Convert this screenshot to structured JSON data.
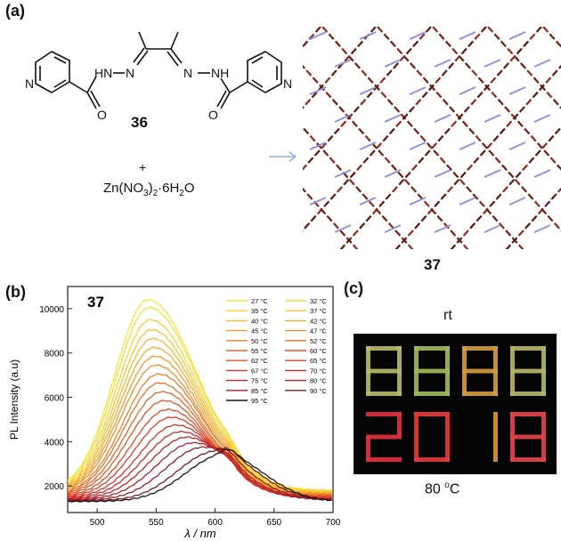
{
  "panel_a": {
    "label": "(a)",
    "ligand_number": "36",
    "plus": "+",
    "salt_main": "Zn(NO",
    "salt_sub1": "3",
    "salt_mid": ")",
    "salt_sub2": "2",
    "salt_dot": "·6H",
    "salt_sub3": "2",
    "salt_end": "O",
    "product_number": "37",
    "ring_N_left": "N",
    "ring_N_right": "N",
    "hydrazide_left": "HN",
    "hydrazide_left2": "N",
    "hydrazide_right": "N",
    "hydrazide_right2": "NH",
    "carbonyl_left": "O",
    "carbonyl_right": "O",
    "arrow_color": "#8fb3dc"
  },
  "panel_b": {
    "label": "(b)",
    "compound": "37"
  },
  "panel_c": {
    "label": "(c)",
    "top_caption": "rt",
    "bottom_caption_value": "80 ",
    "bottom_caption_sup": "o",
    "bottom_caption_unit": "C",
    "digits_top": [
      "8",
      "8",
      "8",
      "8"
    ],
    "digits_bottom": [
      "2",
      "0",
      "1",
      "8"
    ]
  },
  "chart_data": {
    "type": "line",
    "title": "",
    "xlabel": "λ / nm",
    "ylabel": "PL Intensity (a.u)",
    "xlim": [
      475,
      700
    ],
    "ylim": [
      800,
      11000
    ],
    "xticks": [
      500,
      550,
      600,
      650,
      700
    ],
    "yticks": [
      2000,
      4000,
      6000,
      8000,
      10000
    ],
    "legend_position": "top-right",
    "series": [
      {
        "name": "27 °C",
        "color": "#f5e63c",
        "peak": 10400,
        "peak_x": 543
      },
      {
        "name": "32 °C",
        "color": "#f6dd3a",
        "peak": 10050,
        "peak_x": 544
      },
      {
        "name": "35 °C",
        "color": "#f6d238",
        "peak": 9500,
        "peak_x": 545
      },
      {
        "name": "37 °C",
        "color": "#f6c536",
        "peak": 9050,
        "peak_x": 546
      },
      {
        "name": "40 °C",
        "color": "#f5b934",
        "peak": 8650,
        "peak_x": 547
      },
      {
        "name": "42 °C",
        "color": "#f4ab32",
        "peak": 8250,
        "peak_x": 548
      },
      {
        "name": "45 °C",
        "color": "#f29d30",
        "peak": 7850,
        "peak_x": 549
      },
      {
        "name": "47 °C",
        "color": "#f08f2e",
        "peak": 7450,
        "peak_x": 550
      },
      {
        "name": "50 °C",
        "color": "#ed812c",
        "peak": 7050,
        "peak_x": 552
      },
      {
        "name": "52 °C",
        "color": "#ea732a",
        "peak": 6650,
        "peak_x": 553
      },
      {
        "name": "55 °C",
        "color": "#e66528",
        "peak": 6250,
        "peak_x": 555
      },
      {
        "name": "60 °C",
        "color": "#e25827",
        "peak": 5850,
        "peak_x": 557
      },
      {
        "name": "62 °C",
        "color": "#de4b27",
        "peak": 5450,
        "peak_x": 560
      },
      {
        "name": "65 °C",
        "color": "#d93f28",
        "peak": 5100,
        "peak_x": 563
      },
      {
        "name": "67 °C",
        "color": "#d3342a",
        "peak": 4750,
        "peak_x": 567
      },
      {
        "name": "70 °C",
        "color": "#cc2b2c",
        "peak": 4450,
        "peak_x": 571
      },
      {
        "name": "75 °C",
        "color": "#c2242d",
        "peak": 4200,
        "peak_x": 576
      },
      {
        "name": "80 °C",
        "color": "#b01f2e",
        "peak": 3950,
        "peak_x": 582
      },
      {
        "name": "85 °C",
        "color": "#95202c",
        "peak": 3750,
        "peak_x": 590
      },
      {
        "name": "90 °C",
        "color": "#6e1e24",
        "peak": 3550,
        "peak_x": 600
      },
      {
        "name": "95 °C",
        "color": "#1c1414",
        "peak": 3400,
        "peak_x": 607
      }
    ]
  }
}
